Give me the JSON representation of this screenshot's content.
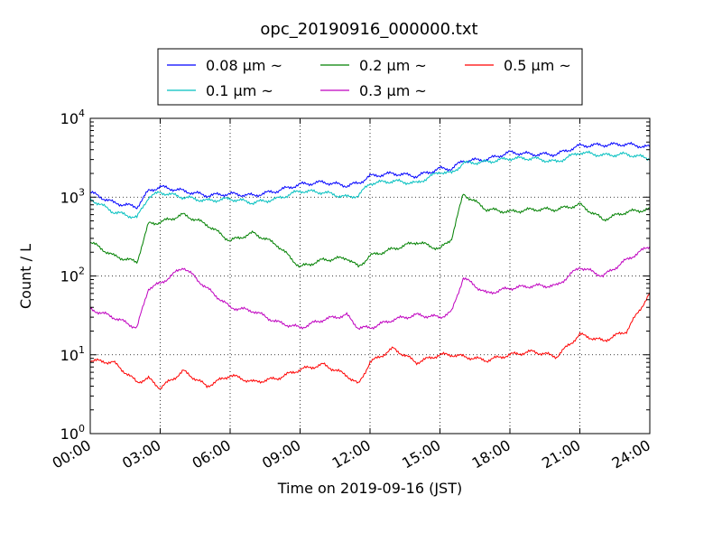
{
  "chart_data": {
    "type": "line",
    "title": "opc_20190916_000000.txt",
    "xlabel": "Time on 2019-09-16 (JST)",
    "ylabel": "Count / L",
    "y_scale": "log",
    "ylim": [
      1,
      10000
    ],
    "xlim": [
      "00:00",
      "24:00"
    ],
    "grid": true,
    "legend_position": "top-center",
    "x_ticks": [
      "00:00",
      "03:00",
      "06:00",
      "09:00",
      "12:00",
      "15:00",
      "18:00",
      "21:00",
      "24:00"
    ],
    "y_ticks": [
      {
        "base": "10",
        "exp": "0",
        "value": 1
      },
      {
        "base": "10",
        "exp": "1",
        "value": 10
      },
      {
        "base": "10",
        "exp": "2",
        "value": 100
      },
      {
        "base": "10",
        "exp": "3",
        "value": 1000
      },
      {
        "base": "10",
        "exp": "4",
        "value": 10000
      }
    ],
    "x": [
      "00:00",
      "01:00",
      "02:00",
      "02:30",
      "03:00",
      "04:00",
      "05:00",
      "06:00",
      "07:00",
      "08:00",
      "09:00",
      "10:00",
      "11:00",
      "11:30",
      "12:00",
      "13:00",
      "14:00",
      "15:00",
      "15:30",
      "16:00",
      "17:00",
      "18:00",
      "19:00",
      "20:00",
      "21:00",
      "22:00",
      "23:00",
      "24:00"
    ],
    "series": [
      {
        "name": "0.08 μm ~",
        "color": "#0000ff",
        "values": [
          1150,
          850,
          750,
          1200,
          1350,
          1200,
          1050,
          1100,
          1050,
          1200,
          1450,
          1550,
          1400,
          1500,
          1850,
          2000,
          1850,
          2300,
          2300,
          2900,
          3000,
          3700,
          3500,
          3500,
          4500,
          4600,
          4700,
          4300
        ]
      },
      {
        "name": "0.1 μm ~",
        "color": "#00bfbf",
        "values": [
          950,
          650,
          550,
          1000,
          1150,
          1000,
          900,
          950,
          850,
          950,
          1200,
          1150,
          1000,
          1050,
          1500,
          1600,
          1500,
          2100,
          2000,
          2700,
          2800,
          3100,
          3100,
          2800,
          3700,
          3400,
          3500,
          3100
        ]
      },
      {
        "name": "0.2 μm ~",
        "color": "#008000",
        "values": [
          270,
          180,
          150,
          460,
          480,
          600,
          450,
          280,
          350,
          250,
          130,
          160,
          170,
          130,
          180,
          220,
          270,
          220,
          300,
          1100,
          700,
          650,
          700,
          700,
          800,
          520,
          650,
          700
        ]
      },
      {
        "name": "0.3 μm ~",
        "color": "#bf00bf",
        "values": [
          38,
          30,
          22,
          70,
          80,
          130,
          70,
          40,
          36,
          26,
          22,
          28,
          32,
          22,
          22,
          28,
          32,
          30,
          35,
          95,
          60,
          70,
          75,
          75,
          130,
          100,
          160,
          240
        ]
      },
      {
        "name": "0.5 μm ~",
        "color": "#ff0000",
        "values": [
          8.5,
          8,
          4.5,
          5,
          3.8,
          6.2,
          4.0,
          5.5,
          4.5,
          5,
          6.5,
          7.5,
          5.5,
          4.2,
          8,
          12,
          8,
          10,
          10,
          9.5,
          8.5,
          10,
          11,
          9.5,
          18,
          15,
          20,
          60
        ]
      }
    ]
  }
}
